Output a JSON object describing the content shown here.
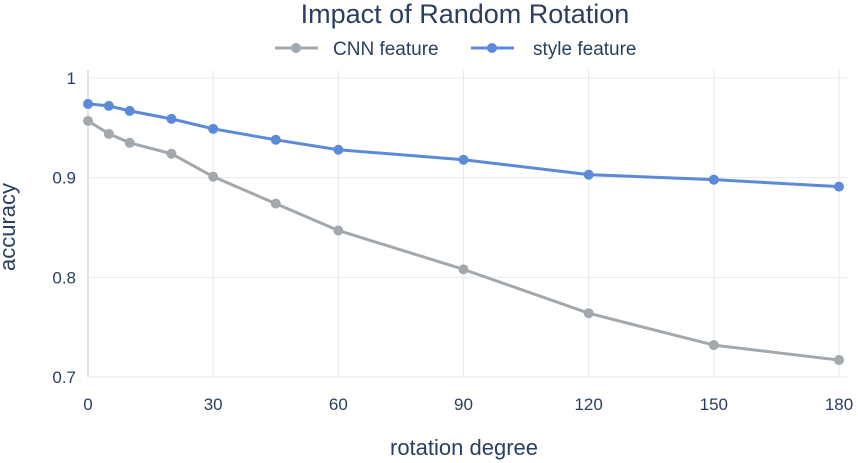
{
  "chart_data": {
    "type": "line",
    "title": "Impact of Random Rotation",
    "xlabel": "rotation degree",
    "ylabel": "accuracy",
    "x": [
      0,
      5,
      10,
      20,
      30,
      45,
      60,
      90,
      120,
      150,
      180
    ],
    "xticks": [
      0,
      30,
      60,
      90,
      120,
      150,
      180
    ],
    "yticks": [
      0.7,
      0.8,
      0.9,
      1
    ],
    "ytick_labels": [
      "0.7",
      "0.8",
      "0.9",
      "1"
    ],
    "xlim": [
      0,
      180
    ],
    "ylim": [
      0.7,
      1.0
    ],
    "grid": true,
    "legend_position": "top",
    "series": [
      {
        "name": "CNN feature",
        "color": "#a3a8ad",
        "values": [
          0.957,
          0.944,
          0.935,
          0.924,
          0.901,
          0.874,
          0.847,
          0.808,
          0.764,
          0.732,
          0.717
        ]
      },
      {
        "name": "style feature",
        "color": "#5b8ad8",
        "values": [
          0.974,
          0.972,
          0.967,
          0.959,
          0.949,
          0.938,
          0.928,
          0.918,
          0.903,
          0.898,
          0.891
        ]
      }
    ]
  }
}
